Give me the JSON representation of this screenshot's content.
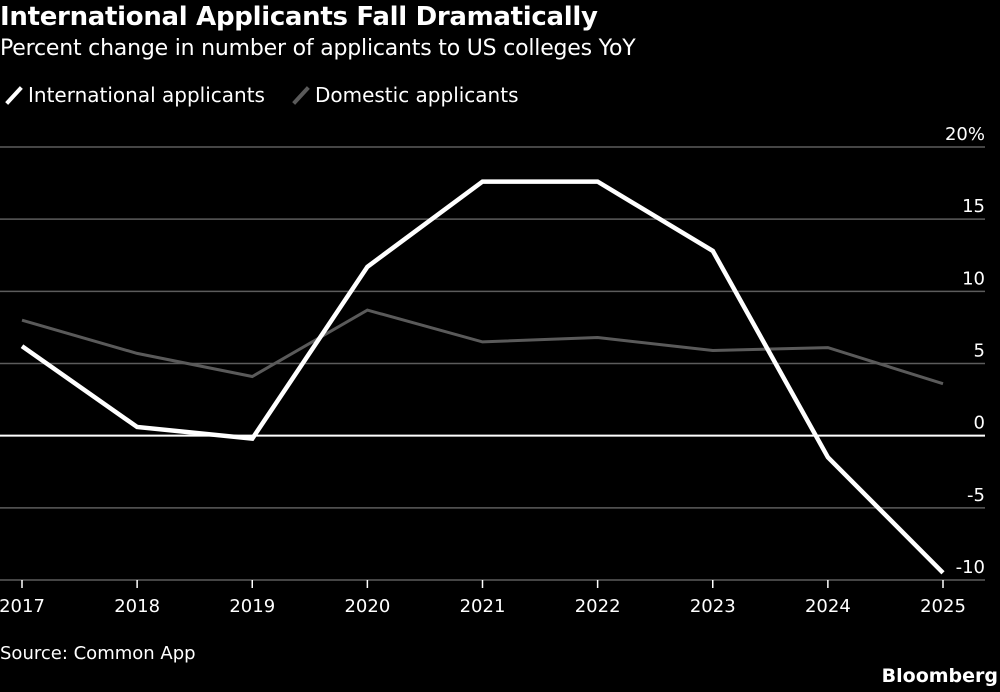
{
  "title": "International Applicants Fall Dramatically",
  "subtitle": "Percent change in number of applicants to US colleges YoY",
  "source": "Source: Common App",
  "brand": "Bloomberg",
  "colors": {
    "background": "#000000",
    "international": "#ffffff",
    "domestic": "#5a5a5a",
    "grid": "#5c5c5c",
    "zero_line": "#ffffff",
    "text": "#ffffff"
  },
  "chart_data": {
    "type": "line",
    "x": [
      "2017",
      "2018",
      "2019",
      "2020",
      "2021",
      "2022",
      "2023",
      "2024",
      "2025"
    ],
    "series": [
      {
        "name": "International applicants",
        "values": [
          6.2,
          0.6,
          -0.2,
          11.7,
          17.6,
          17.6,
          12.8,
          -1.5,
          -9.5
        ]
      },
      {
        "name": "Domestic applicants",
        "values": [
          8.0,
          5.7,
          4.1,
          8.7,
          6.5,
          6.8,
          5.9,
          6.1,
          3.6
        ]
      }
    ],
    "yticks": [
      "20%",
      "15",
      "10",
      "5",
      "0",
      "-5",
      "-10"
    ],
    "ytick_values": [
      20,
      15,
      10,
      5,
      0,
      -5,
      -10
    ],
    "ylim": [
      -10,
      20
    ],
    "y_axis_side": "right",
    "grid": true,
    "legend": "top-left"
  }
}
